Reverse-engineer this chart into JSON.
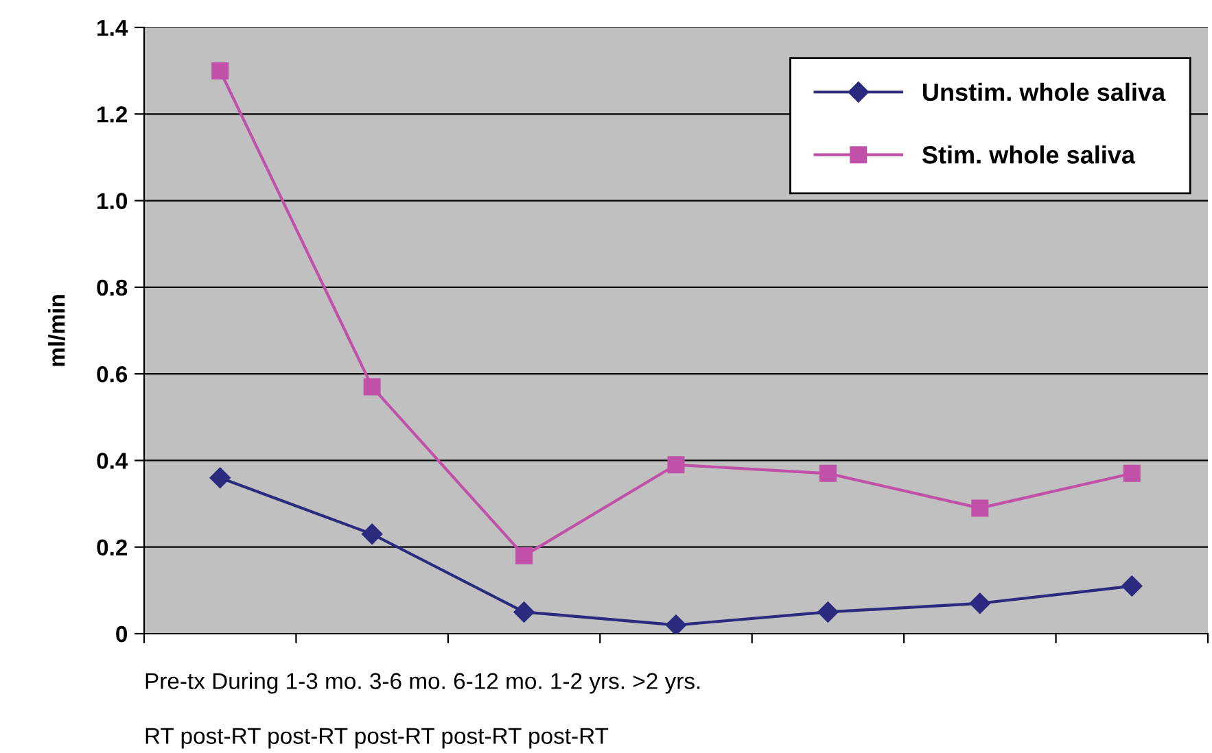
{
  "chart_data": {
    "type": "line",
    "categories": [
      null,
      null,
      null,
      null,
      null,
      null,
      null
    ],
    "series": [
      {
        "name": "Unstim. whole saliva",
        "color": "#2b2a7e",
        "marker": "diamond",
        "values": [
          0.36,
          0.23,
          0.05,
          0.02,
          0.05,
          0.07,
          0.11
        ]
      },
      {
        "name": "Stim. whole saliva",
        "color": "#c050a8",
        "marker": "square",
        "values": [
          1.3,
          0.57,
          0.18,
          0.39,
          0.37,
          0.29,
          0.37
        ]
      }
    ],
    "ylabel": "ml/min",
    "ylim": [
      0,
      1.4
    ],
    "yticks": [
      {
        "value": 0,
        "label": "0"
      },
      {
        "value": 0.2,
        "label": "0.2"
      },
      {
        "value": 0.4,
        "label": "0.4"
      },
      {
        "value": 0.6,
        "label": "0.6"
      },
      {
        "value": 0.8,
        "label": "0.8"
      },
      {
        "value": 1.0,
        "label": "1.0"
      },
      {
        "value": 1.2,
        "label": "1.2"
      },
      {
        "value": 1.4,
        "label": "1.4"
      }
    ],
    "grid": "y",
    "legend": "top right",
    "line_style": "solid",
    "annotations": [
      "Pre-tx During 1-3 mo. 3-6 mo. 6-12 mo. 1-2 yrs. >2 yrs.",
      "RT post-RT post-RT post-RT post-RT post-RT"
    ]
  }
}
